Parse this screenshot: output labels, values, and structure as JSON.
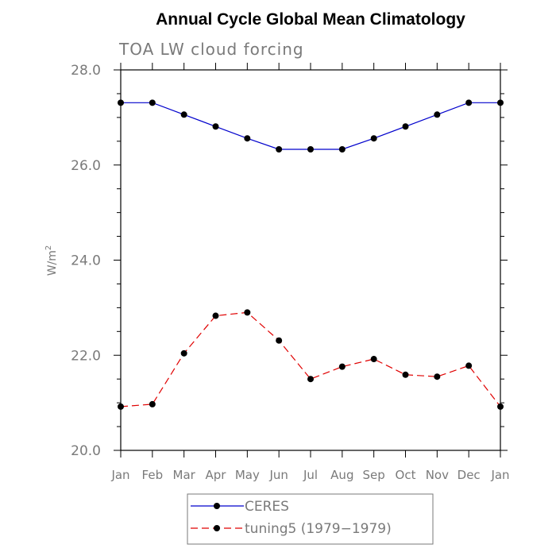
{
  "chart_data": {
    "type": "line",
    "title": "Annual Cycle Global Mean Climatology",
    "subtitle": "TOA LW cloud forcing",
    "xlabel": "",
    "ylabel": "W/m",
    "ylabel_superscript": "2",
    "ylim": [
      20.0,
      28.0
    ],
    "yticks": [
      "20.0",
      "22.0",
      "24.0",
      "26.0",
      "28.0"
    ],
    "categories": [
      "Jan",
      "Feb",
      "Mar",
      "Apr",
      "May",
      "Jun",
      "Jul",
      "Aug",
      "Sep",
      "Oct",
      "Nov",
      "Dec",
      "Jan"
    ],
    "series": [
      {
        "name": "CERES",
        "color": "#0000cc",
        "style": "solid",
        "values": [
          27.31,
          27.31,
          27.06,
          26.81,
          26.56,
          26.33,
          26.33,
          26.33,
          26.56,
          26.81,
          27.06,
          27.31,
          27.31
        ]
      },
      {
        "name": "tuning5 (1979−1979)",
        "color": "#e00000",
        "style": "dashed",
        "values": [
          20.92,
          20.97,
          22.04,
          22.83,
          22.9,
          22.31,
          21.5,
          21.76,
          21.92,
          21.59,
          21.55,
          21.78,
          20.92
        ]
      }
    ],
    "legend_position": "bottom"
  }
}
